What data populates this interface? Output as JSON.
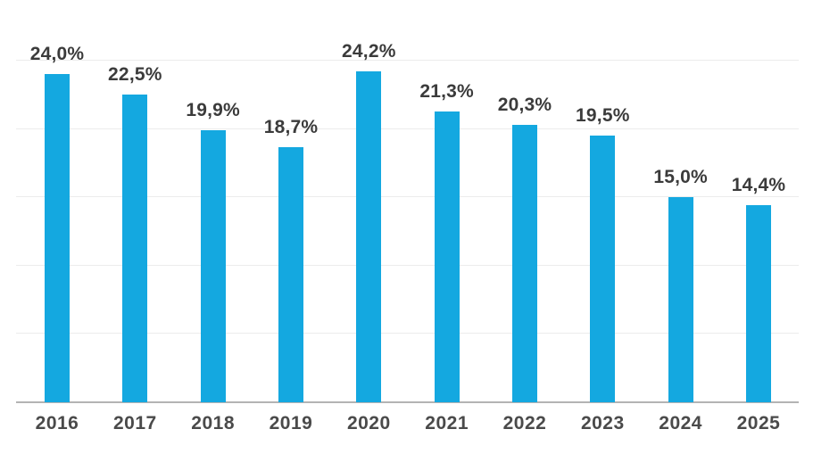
{
  "chart_data": {
    "type": "bar",
    "title": "",
    "xlabel": "",
    "ylabel": "",
    "categories": [
      "2016",
      "2017",
      "2018",
      "2019",
      "2020",
      "2021",
      "2022",
      "2023",
      "2024",
      "2025"
    ],
    "values": [
      24.0,
      22.5,
      19.9,
      18.7,
      24.2,
      21.3,
      20.3,
      19.5,
      15.0,
      14.4
    ],
    "value_labels": [
      "24,0%",
      "22,5%",
      "19,9%",
      "18,7%",
      "24,2%",
      "21,3%",
      "20,3%",
      "19,5%",
      "15,0%",
      "14,4%"
    ],
    "ylim": [
      0,
      25
    ],
    "gridlines": [
      5,
      10,
      15,
      20,
      25
    ],
    "grid": "horizontal",
    "legend": "none",
    "colors": {
      "bar": "#14a8e0",
      "value_label": "#3b3b3b",
      "axis_label": "#4a4a4a",
      "gridline": "#ececec",
      "axis_line": "#b3b3b3",
      "background": "#ffffff"
    }
  }
}
